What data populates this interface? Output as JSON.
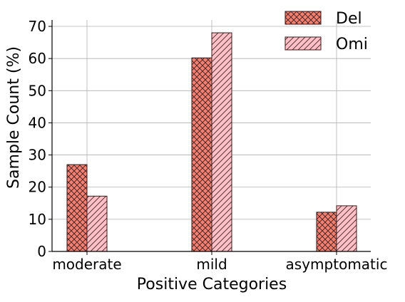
{
  "chart_data": {
    "type": "bar",
    "title": "",
    "xlabel": "Positive Categories",
    "ylabel": "Sample Count (%)",
    "categories": [
      "moderate",
      "mild",
      "asymptomatic"
    ],
    "ylim": [
      0,
      72
    ],
    "yticks": [
      "0",
      "10",
      "20",
      "30",
      "40",
      "50",
      "60",
      "70"
    ],
    "grid": true,
    "legend_position": "top-right",
    "series": [
      {
        "name": "Del",
        "values": [
          27,
          60.2,
          12.2
        ],
        "color": "#f08070",
        "hatch": "crosshatch"
      },
      {
        "name": "Omi",
        "values": [
          17.2,
          68,
          14.2
        ],
        "color": "#ffc0c8",
        "hatch": "diagonal"
      }
    ]
  }
}
